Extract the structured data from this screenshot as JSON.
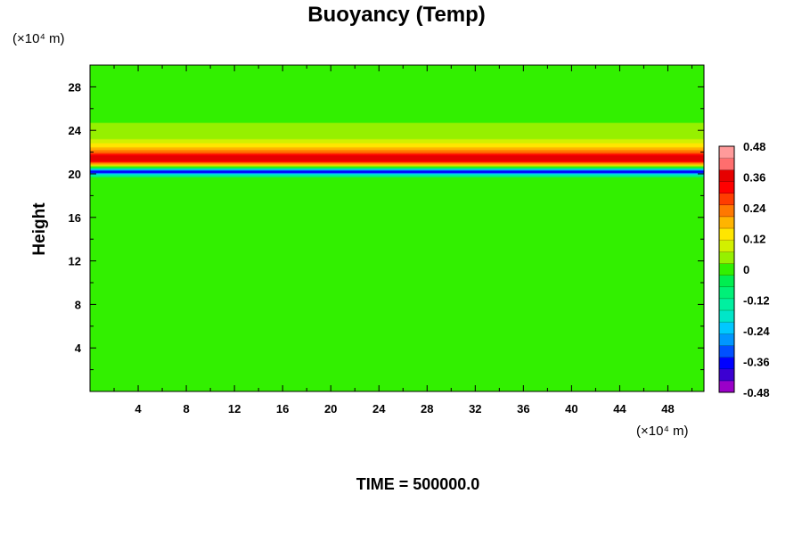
{
  "chart_data": {
    "type": "heatmap",
    "title": "Buoyancy (Temp)",
    "xlabel": "",
    "ylabel": "Height",
    "x_unit_label": "(×10⁴ m)",
    "y_unit_label": "(×10⁴ m)",
    "xlim": [
      0,
      51
    ],
    "ylim": [
      0,
      30
    ],
    "x_ticks": [
      4,
      8,
      12,
      16,
      20,
      24,
      28,
      32,
      36,
      40,
      44,
      48
    ],
    "y_ticks": [
      4,
      8,
      12,
      16,
      20,
      24,
      28
    ],
    "x_tick_labels": [
      "4",
      "8",
      "12",
      "16",
      "20",
      "24",
      "28",
      "32",
      "36",
      "40",
      "44",
      "48"
    ],
    "y_tick_labels": [
      "4",
      "8",
      "12",
      "16",
      "20",
      "24",
      "28"
    ],
    "colorbar": {
      "range": [
        -0.48,
        0.48
      ],
      "ticks": [
        0.48,
        0.36,
        0.24,
        0.12,
        0,
        -0.12,
        -0.24,
        -0.36,
        -0.48
      ],
      "tick_labels": [
        "0.48",
        "0.36",
        "0.24",
        "0.12",
        "0",
        "-0.12",
        "-0.24",
        "-0.36",
        "-0.48"
      ],
      "colors": [
        "#9a00c8",
        "#3c00d2",
        "#0000ff",
        "#0050ff",
        "#0096ff",
        "#00c8ff",
        "#00e6c8",
        "#00f0a0",
        "#00f078",
        "#00ee50",
        "#32f000",
        "#96f000",
        "#d2f000",
        "#ffe600",
        "#ffb400",
        "#ff7800",
        "#ff3c00",
        "#ff0000",
        "#e60000",
        "#ff6e6e",
        "#ff9a9a"
      ]
    },
    "profile": {
      "description_points": "height (×10^4 m) vs buoyancy value",
      "height": [
        0,
        19.6,
        19.9,
        20.2,
        20.5,
        20.8,
        21.2,
        21.6,
        22.0,
        22.6,
        23.2,
        24.0,
        26.0,
        30.0
      ],
      "value": [
        0,
        0,
        -0.14,
        -0.42,
        -0.1,
        0.14,
        0.36,
        0.38,
        0.24,
        0.14,
        0.07,
        0.03,
        0.01,
        0.01
      ]
    }
  },
  "footer": {
    "time_label": "TIME = 500000.0"
  }
}
